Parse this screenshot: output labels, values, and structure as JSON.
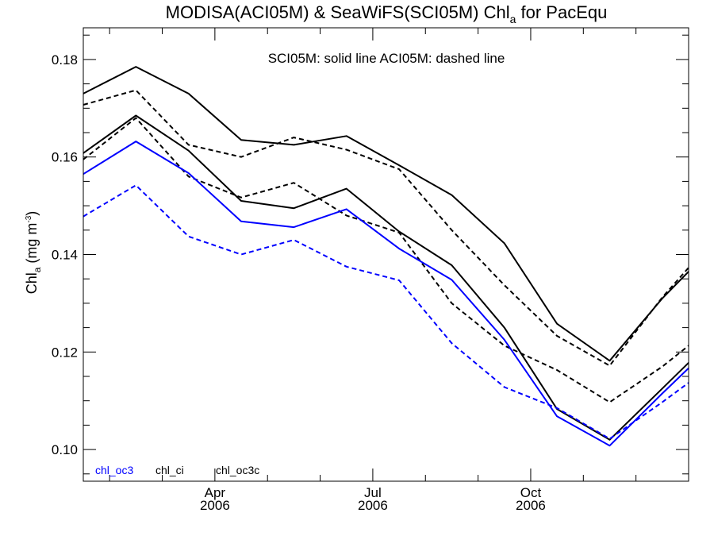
{
  "chart_data": {
    "type": "line",
    "title": {
      "main": "MODISA(ACI05M) & SeaWiFS(SCI05M)  Chl",
      "sub": "a",
      "tail": " for PacEqu"
    },
    "ylabel": {
      "main": "Chl",
      "sub": "a",
      "unit_pre": " (mg m",
      "unit_sup": "-3",
      "unit_post": ")"
    },
    "annotation": "SCI05M: solid line   ACI05M: dashed line",
    "x_ticks": [
      {
        "month": "Apr",
        "year": "2006",
        "x": 3.0
      },
      {
        "month": "Jul",
        "year": "2006",
        "x": 6.0
      },
      {
        "month": "Oct",
        "year": "2006",
        "x": 9.0
      }
    ],
    "xlim": [
      0.5,
      12.0
    ],
    "ylim": [
      0.0935,
      0.1865
    ],
    "y_ticks": [
      "0.10",
      "0.12",
      "0.14",
      "0.16",
      "0.18"
    ],
    "y_tick_values": [
      0.1,
      0.12,
      0.14,
      0.16,
      0.18
    ],
    "grid": false,
    "legend": [
      {
        "label": "chl_oc3",
        "color": "#0000ff"
      },
      {
        "label": "chl_ci",
        "color": "#000000"
      },
      {
        "label": "chl_oc3c",
        "color": "#000000"
      }
    ],
    "series": [
      {
        "color": "#000000",
        "style": "solid",
        "x": [
          0.5,
          1.5,
          2.5,
          3.5,
          4.5,
          5.5,
          6.5,
          7.5,
          8.5,
          9.5,
          10.5,
          11.5,
          12.0
        ],
        "y": [
          0.173,
          0.1785,
          0.173,
          0.1635,
          0.1625,
          0.1643,
          0.1583,
          0.1522,
          0.1423,
          0.1258,
          0.1182,
          0.131,
          0.1365
        ]
      },
      {
        "color": "#000000",
        "style": "dashed",
        "x": [
          0.5,
          1.5,
          2.5,
          3.5,
          4.5,
          5.5,
          6.5,
          7.5,
          8.5,
          9.5,
          10.5,
          11.5,
          12.0
        ],
        "y": [
          0.1707,
          0.1737,
          0.1625,
          0.16,
          0.164,
          0.1615,
          0.1575,
          0.145,
          0.1337,
          0.1233,
          0.1172,
          0.1312,
          0.1373
        ]
      },
      {
        "color": "#000000",
        "style": "solid",
        "x": [
          0.5,
          1.5,
          2.5,
          3.5,
          4.5,
          5.5,
          6.5,
          7.5,
          8.5,
          9.5,
          10.5,
          11.5,
          12.0
        ],
        "y": [
          0.1608,
          0.1685,
          0.1613,
          0.151,
          0.1495,
          0.1535,
          0.1447,
          0.1378,
          0.125,
          0.1083,
          0.102,
          0.1125,
          0.1178
        ]
      },
      {
        "color": "#000000",
        "style": "dashed",
        "x": [
          0.5,
          1.5,
          2.5,
          3.5,
          4.5,
          5.5,
          6.5,
          7.5,
          8.5,
          9.5,
          10.5,
          11.5,
          12.0
        ],
        "y": [
          0.1595,
          0.168,
          0.156,
          0.1517,
          0.1547,
          0.148,
          0.1445,
          0.13,
          0.1213,
          0.1163,
          0.1097,
          0.117,
          0.1213
        ]
      },
      {
        "color": "#0000ff",
        "style": "solid",
        "x": [
          0.5,
          1.5,
          2.5,
          3.5,
          4.5,
          5.5,
          6.5,
          7.5,
          8.5,
          9.5,
          10.5,
          11.5,
          12.0
        ],
        "y": [
          0.1565,
          0.1632,
          0.1567,
          0.1468,
          0.1456,
          0.1493,
          0.1412,
          0.1348,
          0.1225,
          0.1068,
          0.1008,
          0.1115,
          0.1167
        ]
      },
      {
        "color": "#0000ff",
        "style": "dashed",
        "x": [
          0.5,
          1.5,
          2.5,
          3.5,
          4.5,
          5.5,
          6.5,
          7.5,
          8.5,
          9.5,
          10.5,
          11.5,
          12.0
        ],
        "y": [
          0.1478,
          0.1542,
          0.1437,
          0.14,
          0.143,
          0.1375,
          0.1347,
          0.1218,
          0.1128,
          0.1085,
          0.1022,
          0.1097,
          0.1137
        ]
      }
    ]
  }
}
